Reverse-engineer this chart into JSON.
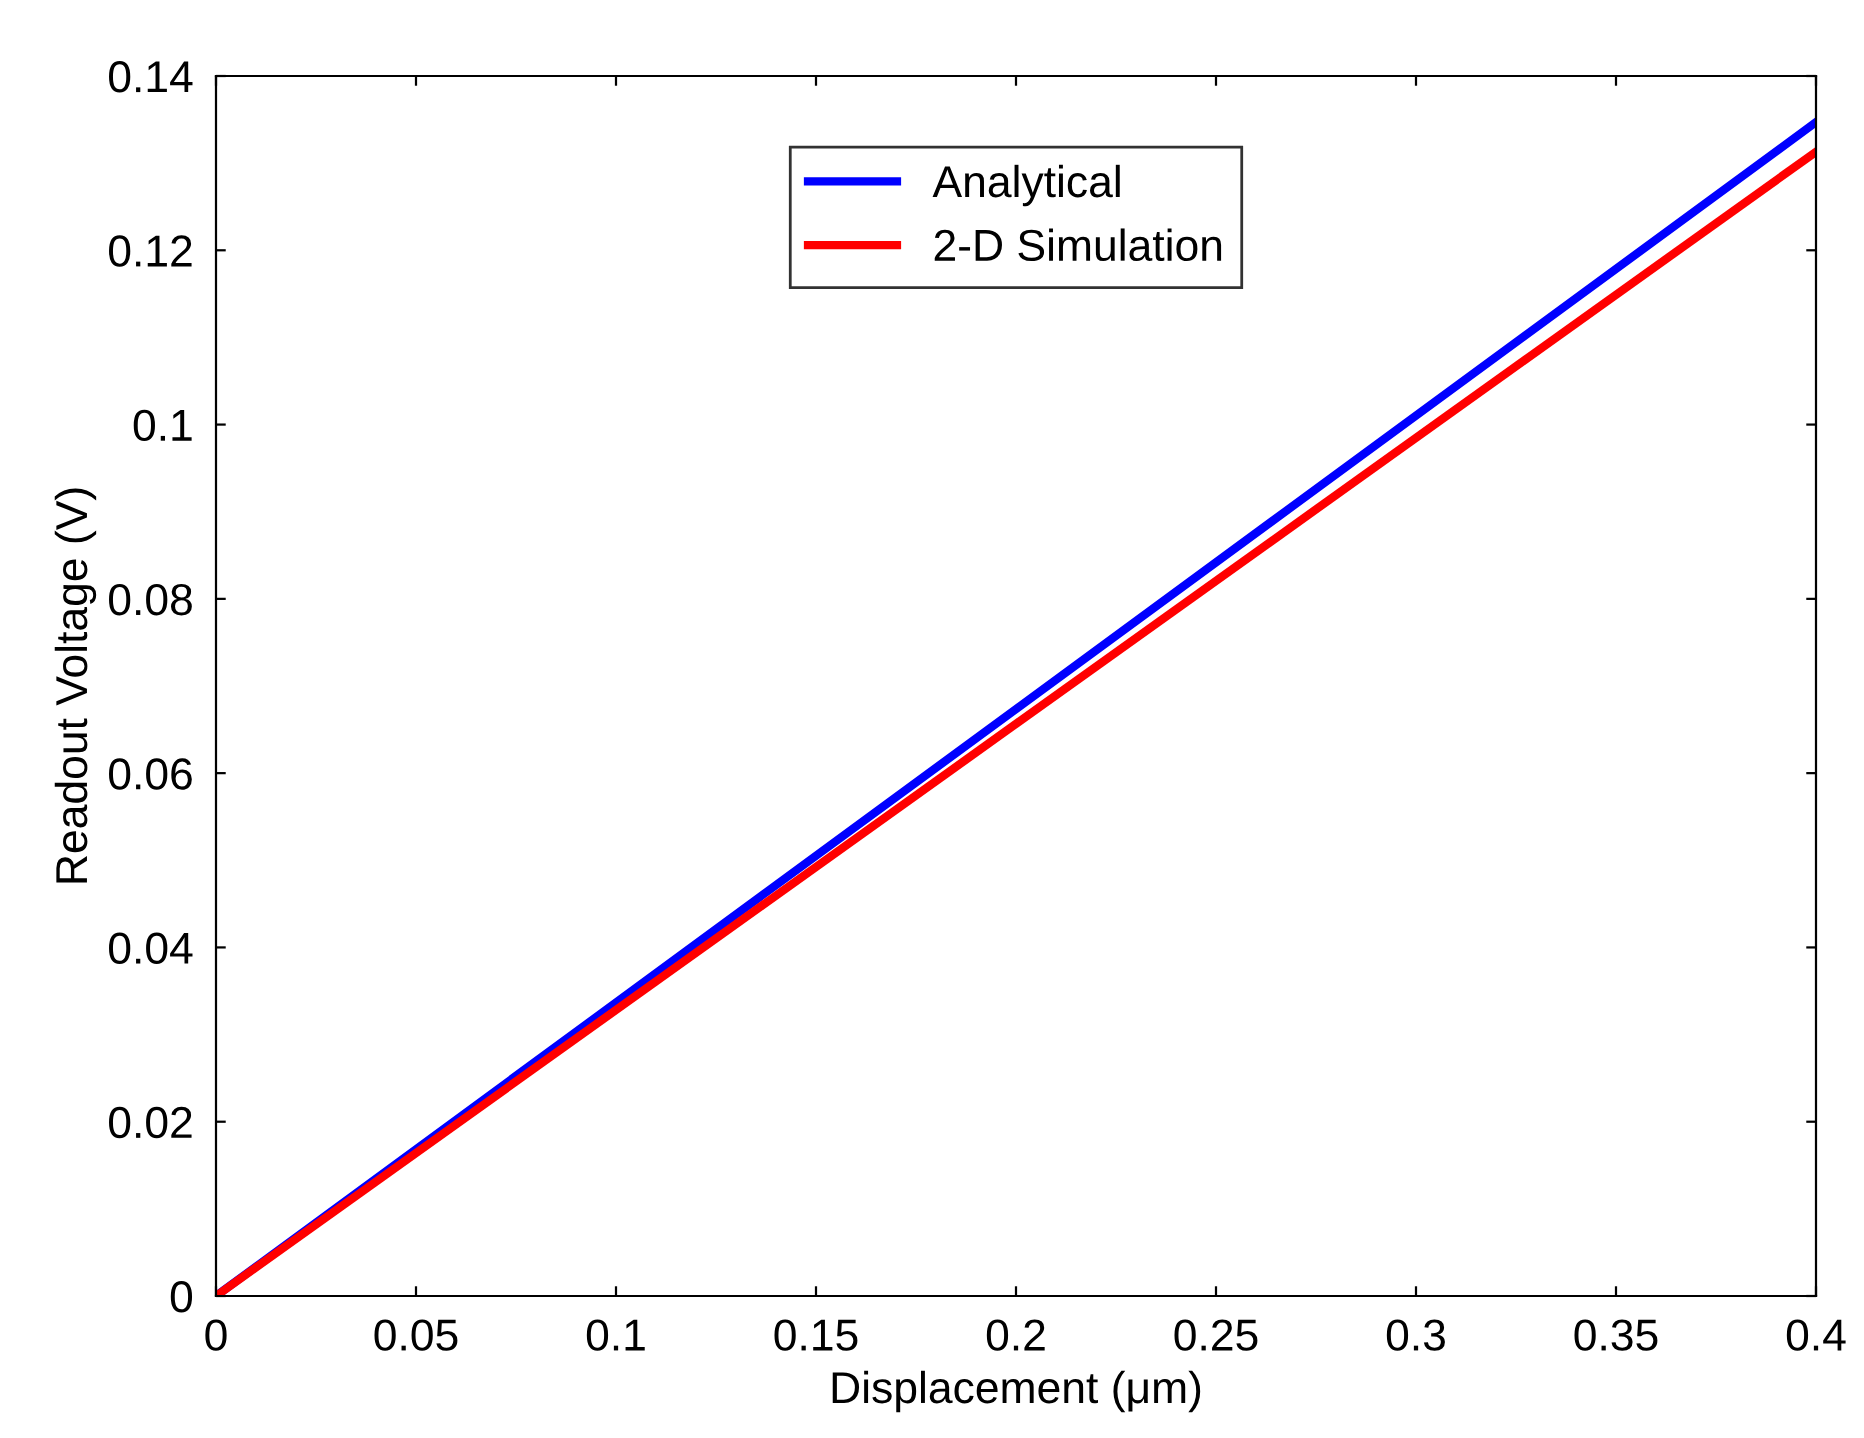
{
  "chart_data": {
    "type": "line",
    "xlabel": "Displacement (μm)",
    "ylabel": "Readout Voltage (V)",
    "x": [
      0,
      0.4
    ],
    "series": [
      {
        "name": "Analytical",
        "color": "#0000ff",
        "values": [
          0,
          0.1347
        ]
      },
      {
        "name": "2-D Simulation",
        "color": "#ff0000",
        "values": [
          0,
          0.1313
        ]
      }
    ],
    "xlim": [
      0,
      0.4
    ],
    "xticks": [
      0,
      0.05,
      0.1,
      0.15,
      0.2,
      0.25,
      0.3,
      0.35,
      0.4
    ],
    "ylim": [
      0,
      0.14
    ],
    "yticks": [
      0,
      0.02,
      0.04,
      0.06,
      0.08,
      0.1,
      0.12,
      0.14
    ],
    "grid": false,
    "legend": "top",
    "marker": "none",
    "line_style": "solid"
  }
}
